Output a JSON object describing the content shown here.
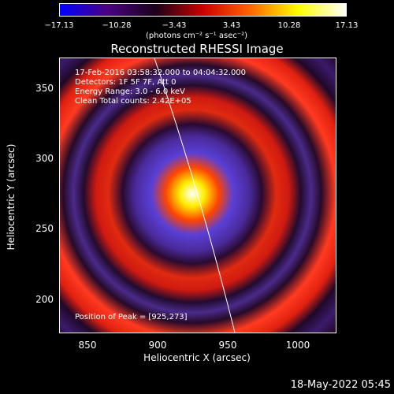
{
  "colorbar": {
    "ticks": [
      "−17.13",
      "−10.28",
      "−3.43",
      "3.43",
      "10.28",
      "17.13"
    ],
    "units": "(photons cm⁻² s⁻¹ asec⁻²)",
    "colors": [
      "#0000ff",
      "#4b0082",
      "#1a001a",
      "#cc0000",
      "#ff6600",
      "#ffff00",
      "#ffffff"
    ]
  },
  "title": "Reconstructed RHESSI Image",
  "info": {
    "time": "17-Feb-2016 03:58:32.000 to 04:04:32.000",
    "detectors": "Detectors: 1F 5F 7F, Att 0",
    "energy": "Energy Range: 3.0 - 6.0 keV",
    "clean": "Clean     Total counts: 2.42E+05",
    "peak": "Position of Peak = [925,273]"
  },
  "axes": {
    "xlabel": "Heliocentric X (arcsec)",
    "ylabel": "Heliocentric Y (arcsec)",
    "xticks": [
      "850",
      "900",
      "950",
      "1000"
    ],
    "yticks": [
      "350",
      "300",
      "250",
      "200"
    ]
  },
  "image": {
    "peak_x": 925,
    "peak_y": 273,
    "x_range": [
      832,
      1030
    ],
    "y_range": [
      175,
      372
    ]
  },
  "timestamp": "18-May-2022 05:45"
}
